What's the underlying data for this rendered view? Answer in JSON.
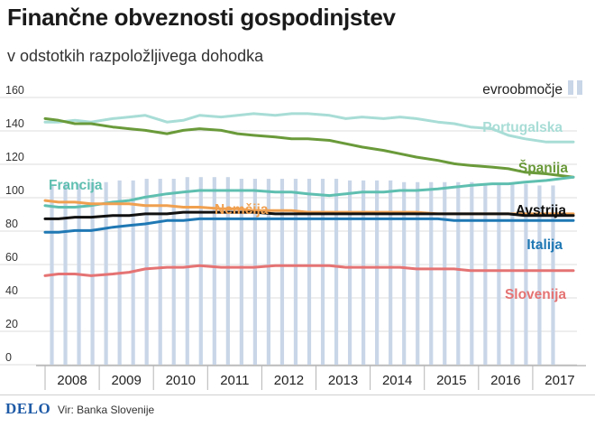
{
  "header": {
    "title": "Finančne obveznosti gospodinjstev",
    "subtitle": "v odstotkih razpoložljivega dohodka"
  },
  "footer": {
    "brand": "DELO",
    "source": "Vir: Banka Slovenije"
  },
  "colors": {
    "bars": "#c9d6e8",
    "Portugalska": "#a8ddd6",
    "Španija": "#6a9a3a",
    "Francija": "#5fbfb0",
    "Nemčija": "#f0a050",
    "Avstrija": "#111111",
    "Italija": "#1f78b4",
    "Slovenija": "#e57373"
  },
  "chart_data": {
    "type": "line",
    "ylim": [
      0,
      160
    ],
    "yticks": [
      "0",
      "20",
      "40",
      "60",
      "80",
      "100",
      "120",
      "140",
      "160"
    ],
    "x_range": [
      2007.75,
      2017.5
    ],
    "xticks": [
      "2008",
      "2009",
      "2010",
      "2011",
      "2012",
      "2013",
      "2014",
      "2015",
      "2016",
      "2017"
    ],
    "legend": {
      "label": "evroobmočje",
      "position": "top-right"
    },
    "bars": {
      "name": "evroobmočje",
      "x": [
        "2008Q1",
        "2008Q2",
        "2008Q3",
        "2008Q4",
        "2009Q1",
        "2009Q2",
        "2009Q3",
        "2009Q4",
        "2010Q1",
        "2010Q2",
        "2010Q3",
        "2010Q4",
        "2011Q1",
        "2011Q2",
        "2011Q3",
        "2011Q4",
        "2012Q1",
        "2012Q2",
        "2012Q3",
        "2012Q4",
        "2013Q1",
        "2013Q2",
        "2013Q3",
        "2013Q4",
        "2014Q1",
        "2014Q2",
        "2014Q3",
        "2014Q4",
        "2015Q1",
        "2015Q2",
        "2015Q3",
        "2015Q4",
        "2016Q1",
        "2016Q2",
        "2016Q3",
        "2016Q4",
        "2017Q1",
        "2017Q2"
      ],
      "values": [
        103,
        104,
        104,
        105,
        105,
        106,
        106,
        107,
        107,
        107,
        108,
        108,
        108,
        108,
        107,
        107,
        107,
        107,
        107,
        107,
        107,
        107,
        106,
        106,
        106,
        106,
        105,
        105,
        105,
        105,
        105,
        105,
        104,
        104,
        104,
        104,
        103,
        103
      ]
    },
    "series": [
      {
        "name": "Portugalska",
        "x": [
          2007.75,
          2008.0,
          2008.3,
          2008.6,
          2009.0,
          2009.3,
          2009.6,
          2010.0,
          2010.3,
          2010.6,
          2011.0,
          2011.3,
          2011.6,
          2012.0,
          2012.3,
          2012.6,
          2013.0,
          2013.3,
          2013.6,
          2014.0,
          2014.3,
          2014.6,
          2015.0,
          2015.3,
          2015.6,
          2016.0,
          2016.3,
          2016.6,
          2017.0,
          2017.5
        ],
        "values": [
          141,
          141,
          142,
          141,
          143,
          144,
          145,
          141,
          142,
          145,
          144,
          145,
          146,
          145,
          146,
          146,
          145,
          143,
          144,
          143,
          144,
          143,
          141,
          140,
          138,
          137,
          133,
          131,
          129,
          129
        ]
      },
      {
        "name": "Španija",
        "x": [
          2007.75,
          2008.0,
          2008.3,
          2008.6,
          2009.0,
          2009.3,
          2009.6,
          2010.0,
          2010.3,
          2010.6,
          2011.0,
          2011.3,
          2011.6,
          2012.0,
          2012.3,
          2012.6,
          2013.0,
          2013.3,
          2013.6,
          2014.0,
          2014.3,
          2014.6,
          2015.0,
          2015.3,
          2015.6,
          2016.0,
          2016.3,
          2016.6,
          2017.0,
          2017.5
        ],
        "values": [
          143,
          142,
          140,
          140,
          138,
          137,
          136,
          134,
          136,
          137,
          136,
          134,
          133,
          132,
          131,
          131,
          130,
          128,
          126,
          124,
          122,
          120,
          118,
          116,
          115,
          114,
          113,
          111,
          110,
          108
        ]
      },
      {
        "name": "Francija",
        "x": [
          2007.75,
          2008.0,
          2008.3,
          2008.6,
          2009.0,
          2009.3,
          2009.6,
          2010.0,
          2010.3,
          2010.6,
          2011.0,
          2011.3,
          2011.6,
          2012.0,
          2012.3,
          2012.6,
          2013.0,
          2013.3,
          2013.6,
          2014.0,
          2014.3,
          2014.6,
          2015.0,
          2015.3,
          2015.6,
          2016.0,
          2016.3,
          2016.6,
          2017.0,
          2017.5
        ],
        "values": [
          91,
          90,
          90,
          91,
          93,
          94,
          96,
          98,
          99,
          100,
          100,
          100,
          100,
          99,
          99,
          98,
          97,
          98,
          99,
          99,
          100,
          100,
          101,
          102,
          103,
          104,
          104,
          105,
          106,
          108
        ]
      },
      {
        "name": "Nemčija",
        "x": [
          2007.75,
          2008.0,
          2008.3,
          2008.6,
          2009.0,
          2009.3,
          2009.6,
          2010.0,
          2010.3,
          2010.6,
          2011.0,
          2011.3,
          2011.6,
          2012.0,
          2012.3,
          2012.6,
          2013.0,
          2013.3,
          2013.6,
          2014.0,
          2014.3,
          2014.6,
          2015.0,
          2015.3,
          2015.6,
          2016.0,
          2016.3,
          2016.6,
          2017.0,
          2017.5
        ],
        "values": [
          94,
          93,
          93,
          92,
          92,
          92,
          91,
          91,
          90,
          90,
          89,
          89,
          88,
          88,
          88,
          87,
          87,
          87,
          87,
          87,
          87,
          87,
          86,
          86,
          86,
          86,
          86,
          86,
          86,
          86
        ]
      },
      {
        "name": "Avstrija",
        "x": [
          2007.75,
          2008.0,
          2008.3,
          2008.6,
          2009.0,
          2009.3,
          2009.6,
          2010.0,
          2010.3,
          2010.6,
          2011.0,
          2011.3,
          2011.6,
          2012.0,
          2012.3,
          2012.6,
          2013.0,
          2013.3,
          2013.6,
          2014.0,
          2014.3,
          2014.6,
          2015.0,
          2015.3,
          2015.6,
          2016.0,
          2016.3,
          2016.6,
          2017.0,
          2017.5
        ],
        "values": [
          83,
          83,
          84,
          84,
          85,
          85,
          86,
          86,
          87,
          87,
          87,
          87,
          87,
          86,
          86,
          86,
          86,
          86,
          86,
          86,
          86,
          86,
          86,
          86,
          86,
          86,
          86,
          85,
          85,
          85
        ]
      },
      {
        "name": "Italija",
        "x": [
          2007.75,
          2008.0,
          2008.3,
          2008.6,
          2009.0,
          2009.3,
          2009.6,
          2010.0,
          2010.3,
          2010.6,
          2011.0,
          2011.3,
          2011.6,
          2012.0,
          2012.3,
          2012.6,
          2013.0,
          2013.3,
          2013.6,
          2014.0,
          2014.3,
          2014.6,
          2015.0,
          2015.3,
          2015.6,
          2016.0,
          2016.3,
          2016.6,
          2017.0,
          2017.5
        ],
        "values": [
          75,
          75,
          76,
          76,
          78,
          79,
          80,
          82,
          82,
          83,
          83,
          83,
          83,
          83,
          83,
          83,
          83,
          83,
          83,
          83,
          83,
          83,
          83,
          82,
          82,
          82,
          82,
          82,
          82,
          82
        ]
      },
      {
        "name": "Slovenija",
        "x": [
          2007.75,
          2008.0,
          2008.3,
          2008.6,
          2009.0,
          2009.3,
          2009.6,
          2010.0,
          2010.3,
          2010.6,
          2011.0,
          2011.3,
          2011.6,
          2012.0,
          2012.3,
          2012.6,
          2013.0,
          2013.3,
          2013.6,
          2014.0,
          2014.3,
          2014.6,
          2015.0,
          2015.3,
          2015.6,
          2016.0,
          2016.3,
          2016.6,
          2017.0,
          2017.5
        ],
        "values": [
          49,
          50,
          50,
          49,
          50,
          51,
          53,
          54,
          54,
          55,
          54,
          54,
          54,
          55,
          55,
          55,
          55,
          54,
          54,
          54,
          54,
          53,
          53,
          53,
          52,
          52,
          52,
          52,
          52,
          52
        ]
      }
    ]
  }
}
